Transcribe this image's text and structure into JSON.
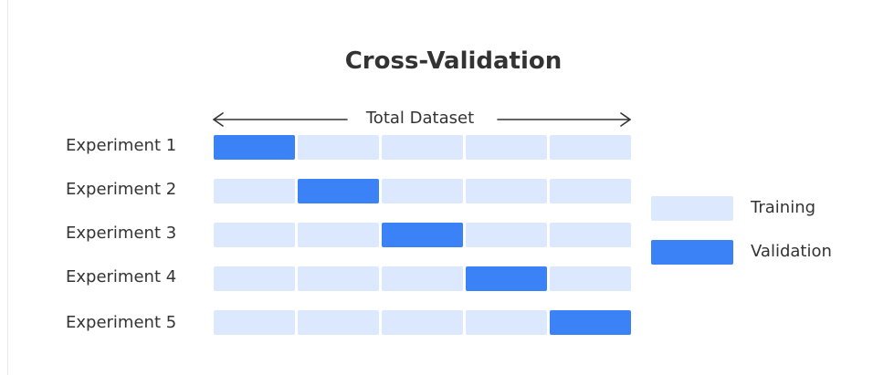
{
  "title": "Cross-Validation",
  "dataset_label": "Total Dataset",
  "colors": {
    "training": "#dbe8fd",
    "validation": "#3b82f6",
    "text": "#333333"
  },
  "experiments": [
    {
      "label": "Experiment 1",
      "validation_fold": 1
    },
    {
      "label": "Experiment 2",
      "validation_fold": 2
    },
    {
      "label": "Experiment 3",
      "validation_fold": 3
    },
    {
      "label": "Experiment 4",
      "validation_fold": 4
    },
    {
      "label": "Experiment 5",
      "validation_fold": 5
    }
  ],
  "folds_per_experiment": 5,
  "legend": {
    "training_label": "Training",
    "validation_label": "Validation"
  }
}
